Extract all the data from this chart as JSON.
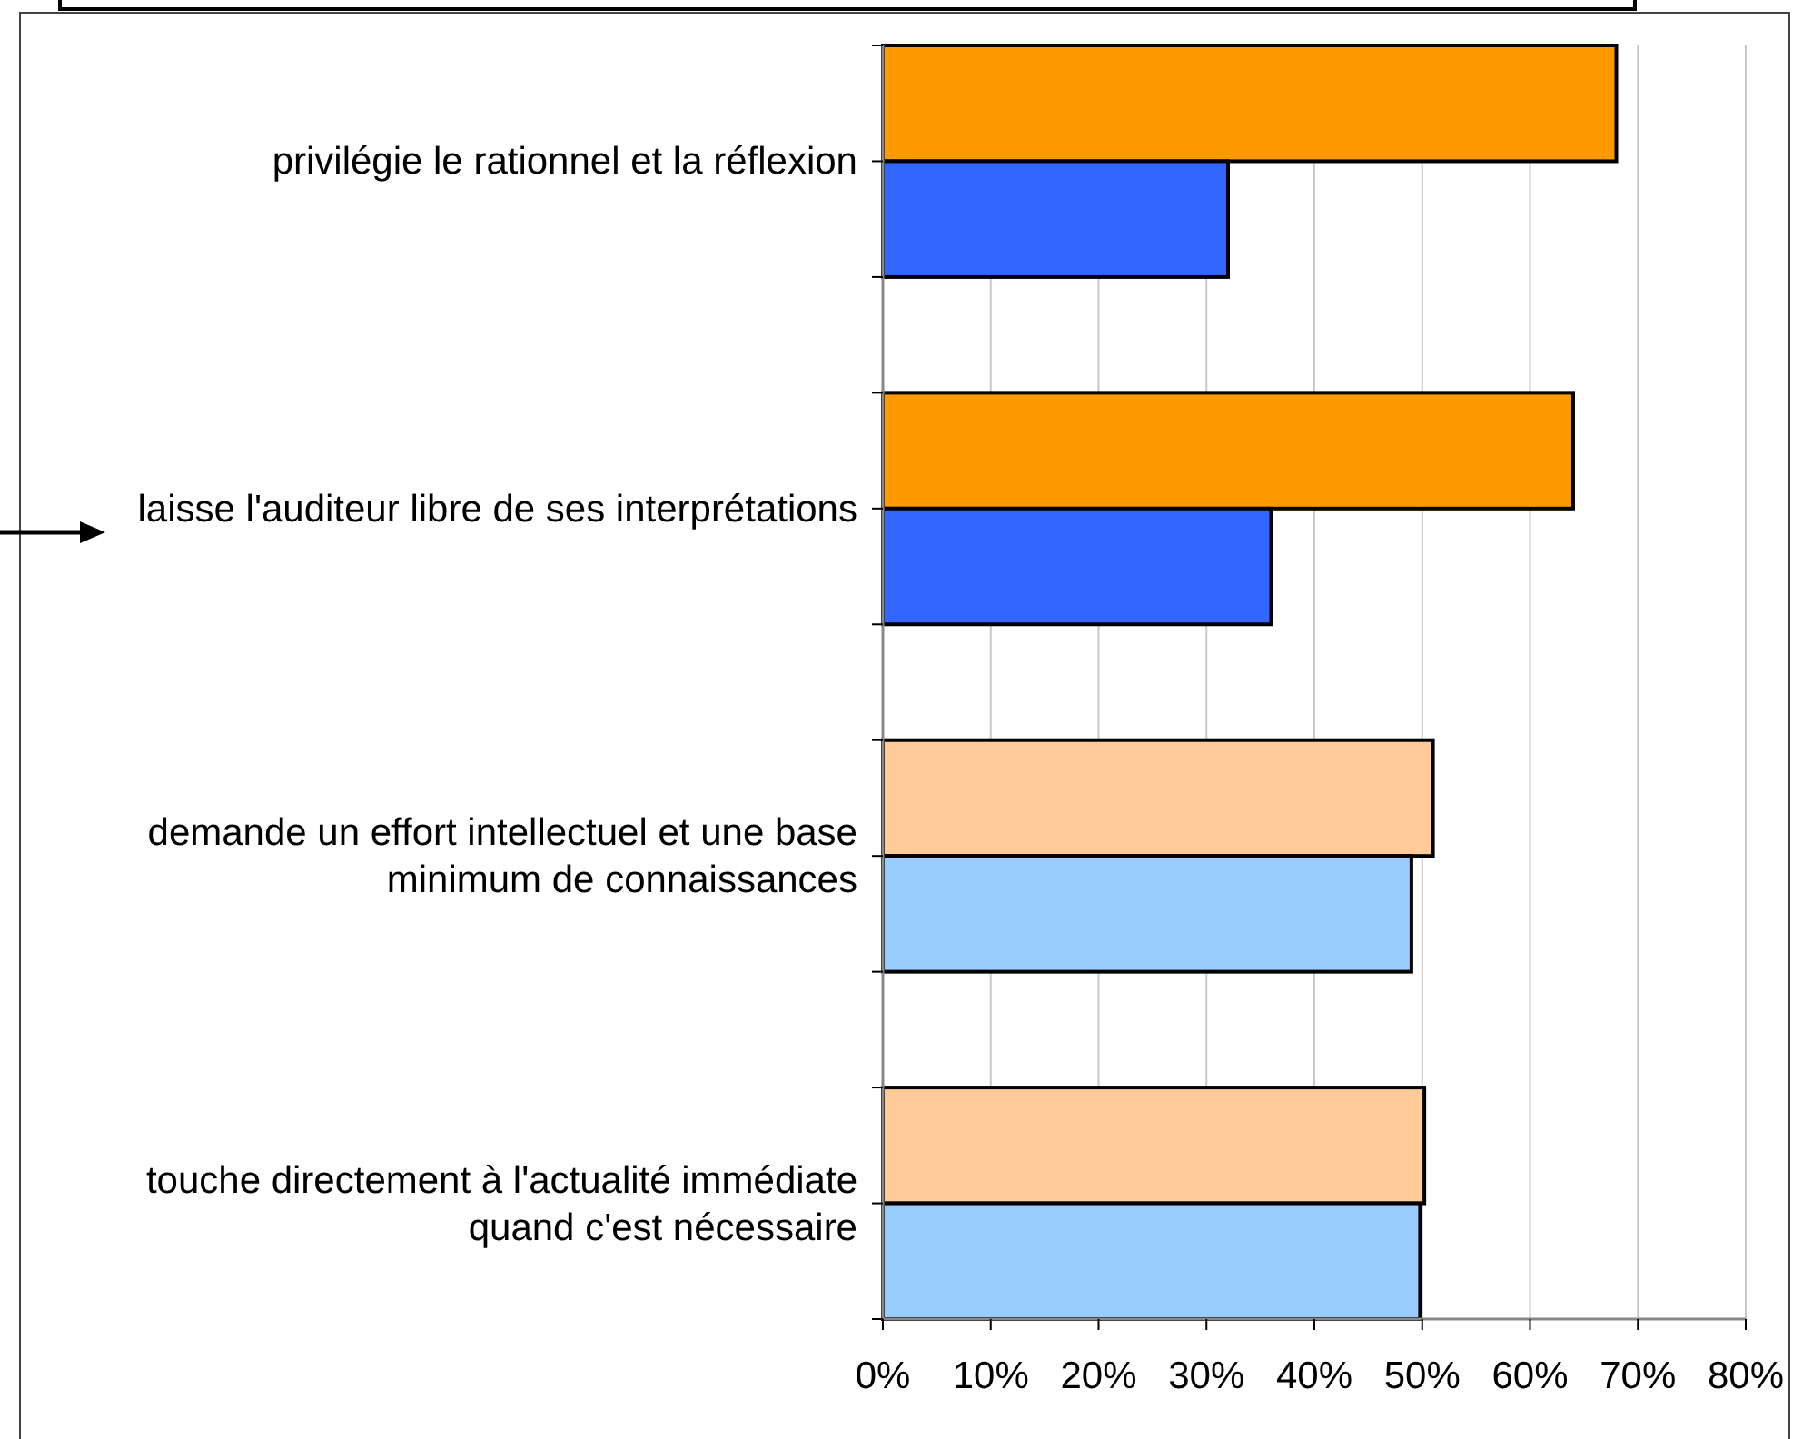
{
  "chart_data": {
    "type": "bar",
    "orientation": "horizontal",
    "categories": [
      "privilégie le rationnel et la réflexion",
      "laisse l'auditeur libre de ses interprétations",
      "demande un effort intellectuel et une base minimum de connaissances",
      "touche directement à l'actualité immédiate quand c'est nécessaire"
    ],
    "series": [
      {
        "colors": [
          "#ff9900",
          "#ff9900",
          "#ffcc99",
          "#ffcc99"
        ],
        "values": [
          68,
          64,
          51,
          50.2
        ]
      },
      {
        "colors": [
          "#3366ff",
          "#3366ff",
          "#99ccff",
          "#99ccff"
        ],
        "values": [
          32,
          36,
          49,
          49.8
        ]
      }
    ],
    "xlim": [
      0,
      80
    ],
    "xticks": [
      {
        "value": 0,
        "label": "0%"
      },
      {
        "value": 10,
        "label": "10%"
      },
      {
        "value": 20,
        "label": "20%"
      },
      {
        "value": 30,
        "label": "30%"
      },
      {
        "value": 40,
        "label": "40%"
      },
      {
        "value": 50,
        "label": "50%"
      },
      {
        "value": 60,
        "label": "60%"
      },
      {
        "value": 70,
        "label": "70%"
      },
      {
        "value": 80,
        "label": "80%"
      }
    ],
    "grid": "x"
  }
}
